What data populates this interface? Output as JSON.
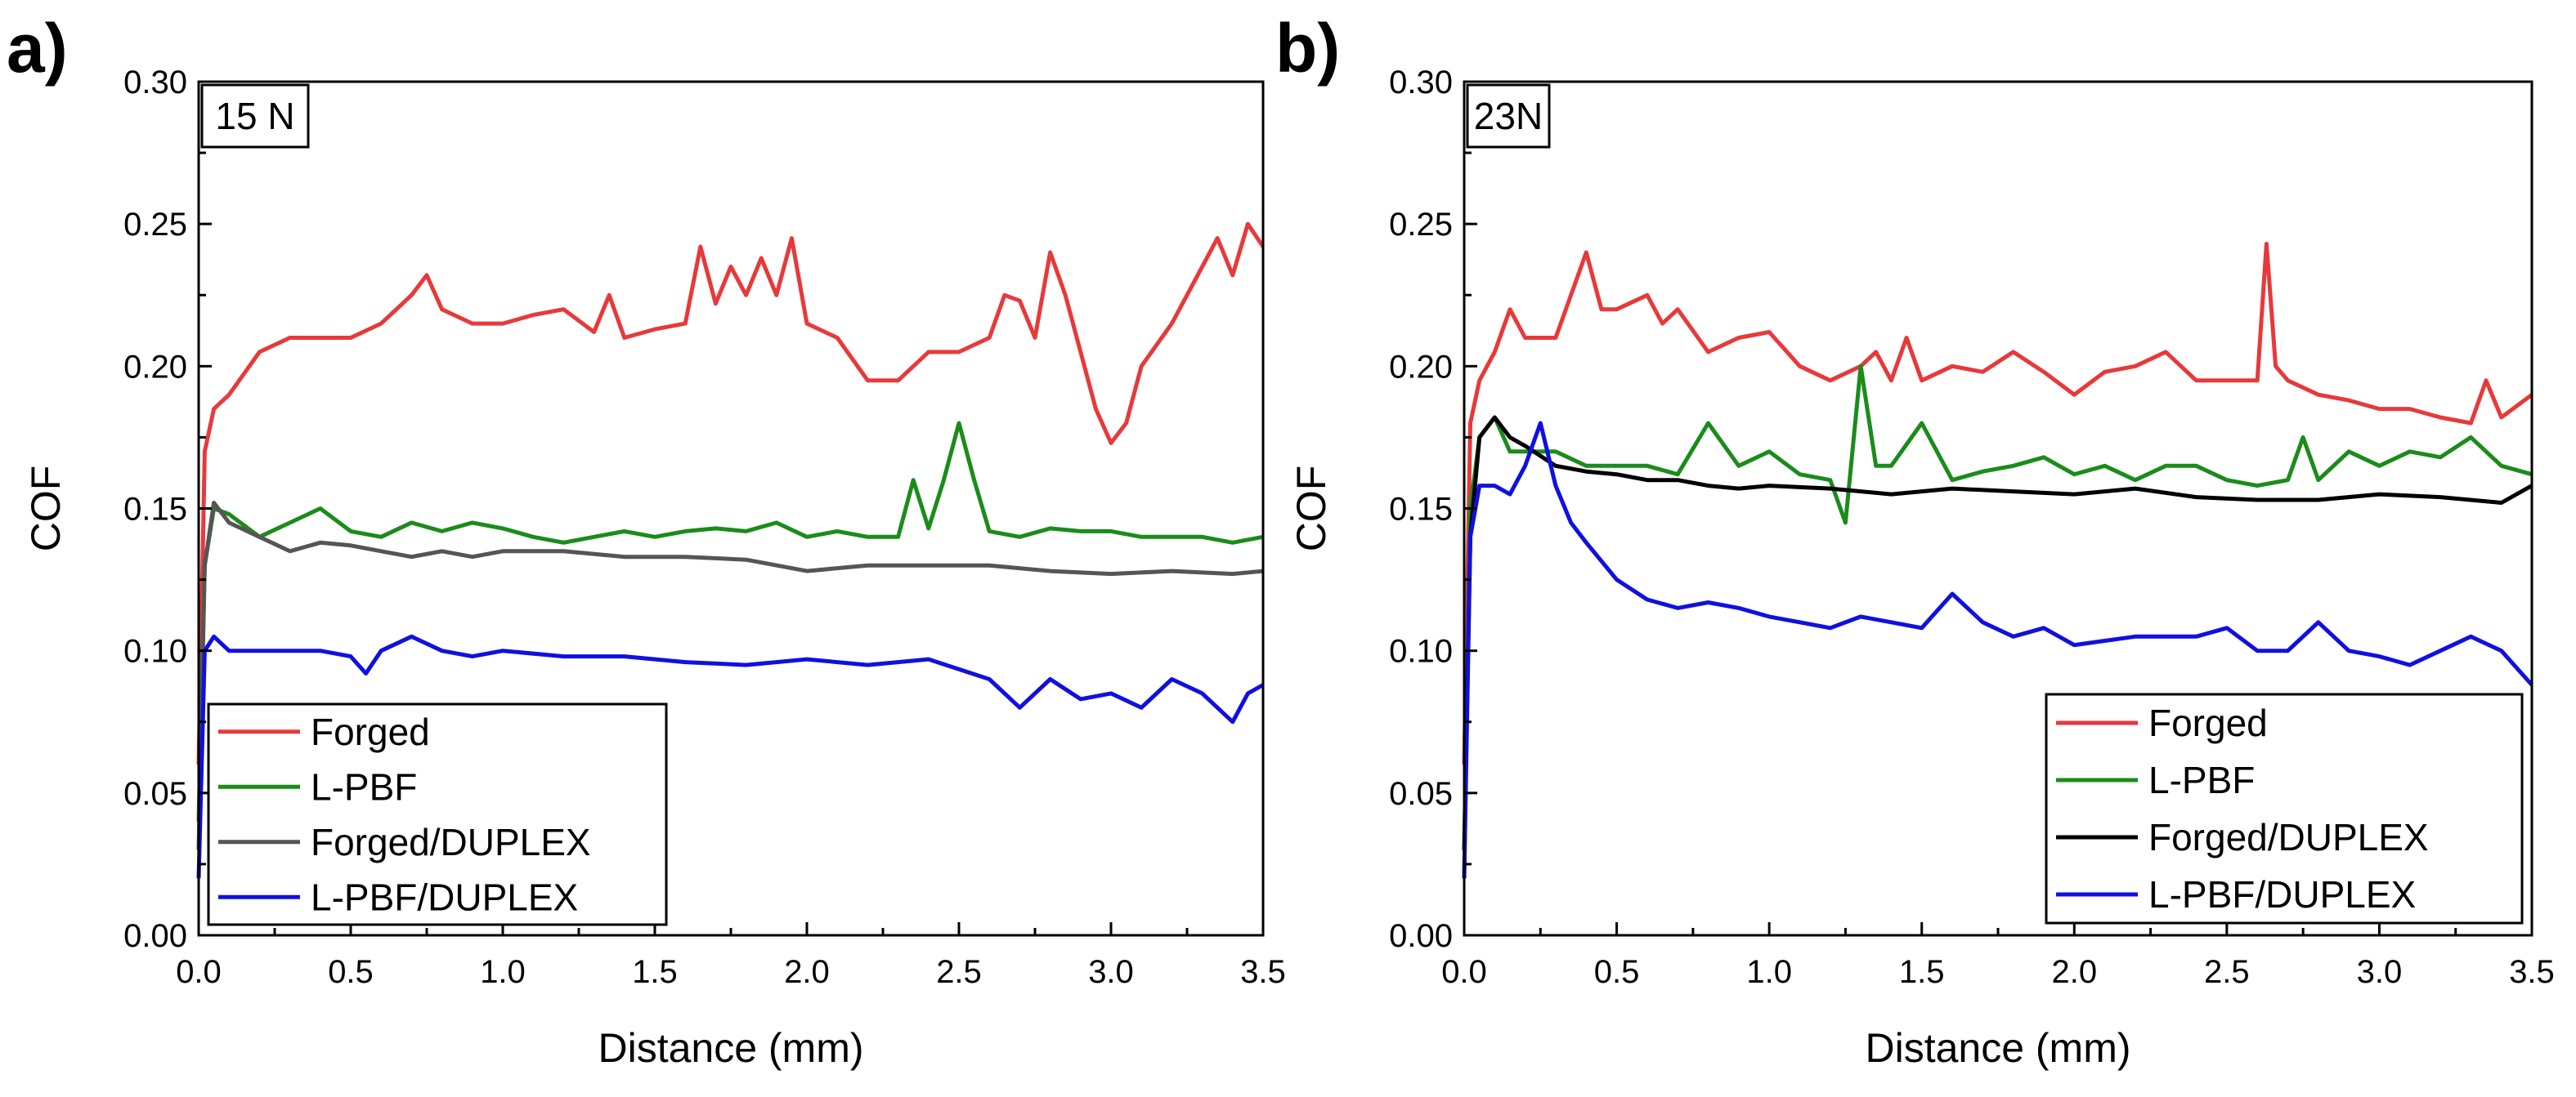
{
  "chart_data": [
    {
      "type": "line",
      "panel_label": "a)",
      "annotation": "15 N",
      "xlabel": "Distance (mm)",
      "ylabel": "COF",
      "xlim": [
        0,
        3.5
      ],
      "ylim": [
        0,
        0.3
      ],
      "xticks": [
        "0.0",
        "0.5",
        "1.0",
        "1.5",
        "2.0",
        "2.5",
        "3.0",
        "3.5"
      ],
      "yticks": [
        "0.00",
        "0.05",
        "0.10",
        "0.15",
        "0.20",
        "0.25",
        "0.30"
      ],
      "legend_position": "bottom-left",
      "series": [
        {
          "name": "Forged",
          "color": "#e8393a",
          "x": [
            0,
            0.02,
            0.05,
            0.1,
            0.2,
            0.3,
            0.4,
            0.5,
            0.6,
            0.7,
            0.75,
            0.8,
            0.9,
            1.0,
            1.1,
            1.2,
            1.3,
            1.35,
            1.4,
            1.5,
            1.6,
            1.65,
            1.7,
            1.75,
            1.8,
            1.85,
            1.9,
            1.95,
            2.0,
            2.1,
            2.2,
            2.3,
            2.4,
            2.5,
            2.6,
            2.65,
            2.7,
            2.75,
            2.8,
            2.85,
            2.9,
            2.95,
            3.0,
            3.05,
            3.1,
            3.2,
            3.3,
            3.35,
            3.4,
            3.45,
            3.5
          ],
          "y": [
            0.06,
            0.17,
            0.185,
            0.19,
            0.205,
            0.21,
            0.21,
            0.21,
            0.215,
            0.225,
            0.232,
            0.22,
            0.215,
            0.215,
            0.218,
            0.22,
            0.212,
            0.225,
            0.21,
            0.213,
            0.215,
            0.242,
            0.222,
            0.235,
            0.225,
            0.238,
            0.225,
            0.245,
            0.215,
            0.21,
            0.195,
            0.195,
            0.205,
            0.205,
            0.21,
            0.225,
            0.223,
            0.21,
            0.24,
            0.225,
            0.205,
            0.185,
            0.173,
            0.18,
            0.2,
            0.215,
            0.235,
            0.245,
            0.232,
            0.25,
            0.242
          ]
        },
        {
          "name": "L-PBF",
          "color": "#1a8c1a",
          "x": [
            0,
            0.02,
            0.05,
            0.1,
            0.2,
            0.3,
            0.4,
            0.5,
            0.6,
            0.7,
            0.8,
            0.9,
            1.0,
            1.1,
            1.2,
            1.3,
            1.4,
            1.5,
            1.6,
            1.7,
            1.8,
            1.9,
            2.0,
            2.1,
            2.2,
            2.3,
            2.35,
            2.4,
            2.45,
            2.5,
            2.55,
            2.6,
            2.7,
            2.8,
            2.9,
            3.0,
            3.1,
            3.2,
            3.3,
            3.4,
            3.5
          ],
          "y": [
            0.04,
            0.13,
            0.15,
            0.148,
            0.14,
            0.145,
            0.15,
            0.142,
            0.14,
            0.145,
            0.142,
            0.145,
            0.143,
            0.14,
            0.138,
            0.14,
            0.142,
            0.14,
            0.142,
            0.143,
            0.142,
            0.145,
            0.14,
            0.142,
            0.14,
            0.14,
            0.16,
            0.143,
            0.16,
            0.18,
            0.16,
            0.142,
            0.14,
            0.143,
            0.142,
            0.142,
            0.14,
            0.14,
            0.14,
            0.138,
            0.14
          ]
        },
        {
          "name": "Forged/DUPLEX",
          "color": "#555555",
          "x": [
            0,
            0.02,
            0.05,
            0.1,
            0.2,
            0.3,
            0.4,
            0.5,
            0.6,
            0.7,
            0.8,
            0.9,
            1.0,
            1.2,
            1.4,
            1.6,
            1.8,
            2.0,
            2.2,
            2.4,
            2.6,
            2.8,
            3.0,
            3.2,
            3.4,
            3.5
          ],
          "y": [
            0.03,
            0.13,
            0.152,
            0.145,
            0.14,
            0.135,
            0.138,
            0.137,
            0.135,
            0.133,
            0.135,
            0.133,
            0.135,
            0.135,
            0.133,
            0.133,
            0.132,
            0.128,
            0.13,
            0.13,
            0.13,
            0.128,
            0.127,
            0.128,
            0.127,
            0.128
          ]
        },
        {
          "name": "L-PBF/DUPLEX",
          "color": "#1010e0",
          "x": [
            0,
            0.02,
            0.05,
            0.1,
            0.2,
            0.3,
            0.4,
            0.5,
            0.55,
            0.6,
            0.7,
            0.8,
            0.9,
            1.0,
            1.2,
            1.4,
            1.6,
            1.8,
            2.0,
            2.2,
            2.4,
            2.6,
            2.7,
            2.8,
            2.9,
            3.0,
            3.1,
            3.2,
            3.3,
            3.4,
            3.45,
            3.5
          ],
          "y": [
            0.02,
            0.1,
            0.105,
            0.1,
            0.1,
            0.1,
            0.1,
            0.098,
            0.092,
            0.1,
            0.105,
            0.1,
            0.098,
            0.1,
            0.098,
            0.098,
            0.096,
            0.095,
            0.097,
            0.095,
            0.097,
            0.09,
            0.08,
            0.09,
            0.083,
            0.085,
            0.08,
            0.09,
            0.085,
            0.075,
            0.085,
            0.088
          ]
        }
      ]
    },
    {
      "type": "line",
      "panel_label": "b)",
      "annotation": "23N",
      "xlabel": "Distance (mm)",
      "ylabel": "COF",
      "xlim": [
        0,
        3.5
      ],
      "ylim": [
        0,
        0.3
      ],
      "xticks": [
        "0.0",
        "0.5",
        "1.0",
        "1.5",
        "2.0",
        "2.5",
        "3.0",
        "3.5"
      ],
      "yticks": [
        "0.00",
        "0.05",
        "0.10",
        "0.15",
        "0.20",
        "0.25",
        "0.30"
      ],
      "legend_position": "bottom-right",
      "series": [
        {
          "name": "Forged",
          "color": "#e8393a",
          "x": [
            0,
            0.02,
            0.05,
            0.1,
            0.15,
            0.2,
            0.3,
            0.35,
            0.4,
            0.45,
            0.5,
            0.6,
            0.65,
            0.7,
            0.8,
            0.9,
            1.0,
            1.1,
            1.2,
            1.3,
            1.35,
            1.4,
            1.45,
            1.5,
            1.6,
            1.7,
            1.8,
            1.9,
            2.0,
            2.1,
            2.2,
            2.3,
            2.4,
            2.5,
            2.6,
            2.63,
            2.66,
            2.7,
            2.8,
            2.9,
            3.0,
            3.1,
            3.2,
            3.3,
            3.35,
            3.4,
            3.5
          ],
          "y": [
            0.06,
            0.18,
            0.195,
            0.205,
            0.22,
            0.21,
            0.21,
            0.225,
            0.24,
            0.22,
            0.22,
            0.225,
            0.215,
            0.22,
            0.205,
            0.21,
            0.212,
            0.2,
            0.195,
            0.2,
            0.205,
            0.195,
            0.21,
            0.195,
            0.2,
            0.198,
            0.205,
            0.198,
            0.19,
            0.198,
            0.2,
            0.205,
            0.195,
            0.195,
            0.195,
            0.243,
            0.2,
            0.195,
            0.19,
            0.188,
            0.185,
            0.185,
            0.182,
            0.18,
            0.195,
            0.182,
            0.19
          ]
        },
        {
          "name": "L-PBF",
          "color": "#1a8c1a",
          "x": [
            0,
            0.02,
            0.05,
            0.1,
            0.15,
            0.2,
            0.3,
            0.4,
            0.5,
            0.6,
            0.7,
            0.8,
            0.9,
            1.0,
            1.1,
            1.2,
            1.25,
            1.3,
            1.35,
            1.4,
            1.5,
            1.6,
            1.7,
            1.8,
            1.9,
            2.0,
            2.1,
            2.2,
            2.3,
            2.4,
            2.5,
            2.6,
            2.7,
            2.75,
            2.8,
            2.9,
            3.0,
            3.1,
            3.2,
            3.3,
            3.4,
            3.5
          ],
          "y": [
            0.02,
            0.15,
            0.175,
            0.182,
            0.17,
            0.17,
            0.17,
            0.165,
            0.165,
            0.165,
            0.162,
            0.18,
            0.165,
            0.17,
            0.162,
            0.16,
            0.145,
            0.2,
            0.165,
            0.165,
            0.18,
            0.16,
            0.163,
            0.165,
            0.168,
            0.162,
            0.165,
            0.16,
            0.165,
            0.165,
            0.16,
            0.158,
            0.16,
            0.175,
            0.16,
            0.17,
            0.165,
            0.17,
            0.168,
            0.175,
            0.165,
            0.162
          ]
        },
        {
          "name": "Forged/DUPLEX",
          "color": "#000000",
          "x": [
            0,
            0.02,
            0.05,
            0.1,
            0.15,
            0.2,
            0.3,
            0.4,
            0.5,
            0.6,
            0.7,
            0.8,
            0.9,
            1.0,
            1.2,
            1.4,
            1.6,
            1.8,
            2.0,
            2.2,
            2.4,
            2.6,
            2.8,
            3.0,
            3.2,
            3.4,
            3.5
          ],
          "y": [
            0.03,
            0.14,
            0.175,
            0.182,
            0.175,
            0.172,
            0.165,
            0.163,
            0.162,
            0.16,
            0.16,
            0.158,
            0.157,
            0.158,
            0.157,
            0.155,
            0.157,
            0.156,
            0.155,
            0.157,
            0.154,
            0.153,
            0.153,
            0.155,
            0.154,
            0.152,
            0.158
          ]
        },
        {
          "name": "L-PBF/DUPLEX",
          "color": "#1010e0",
          "x": [
            0,
            0.02,
            0.05,
            0.1,
            0.15,
            0.2,
            0.25,
            0.3,
            0.35,
            0.4,
            0.5,
            0.6,
            0.7,
            0.8,
            0.9,
            1.0,
            1.1,
            1.2,
            1.3,
            1.4,
            1.5,
            1.6,
            1.7,
            1.8,
            1.9,
            2.0,
            2.2,
            2.4,
            2.5,
            2.6,
            2.7,
            2.8,
            2.9,
            3.0,
            3.1,
            3.2,
            3.3,
            3.4,
            3.5
          ],
          "y": [
            0.02,
            0.14,
            0.158,
            0.158,
            0.155,
            0.165,
            0.18,
            0.158,
            0.145,
            0.138,
            0.125,
            0.118,
            0.115,
            0.117,
            0.115,
            0.112,
            0.11,
            0.108,
            0.112,
            0.11,
            0.108,
            0.12,
            0.11,
            0.105,
            0.108,
            0.102,
            0.105,
            0.105,
            0.108,
            0.1,
            0.1,
            0.11,
            0.1,
            0.098,
            0.095,
            0.1,
            0.105,
            0.1,
            0.088
          ]
        }
      ]
    }
  ]
}
